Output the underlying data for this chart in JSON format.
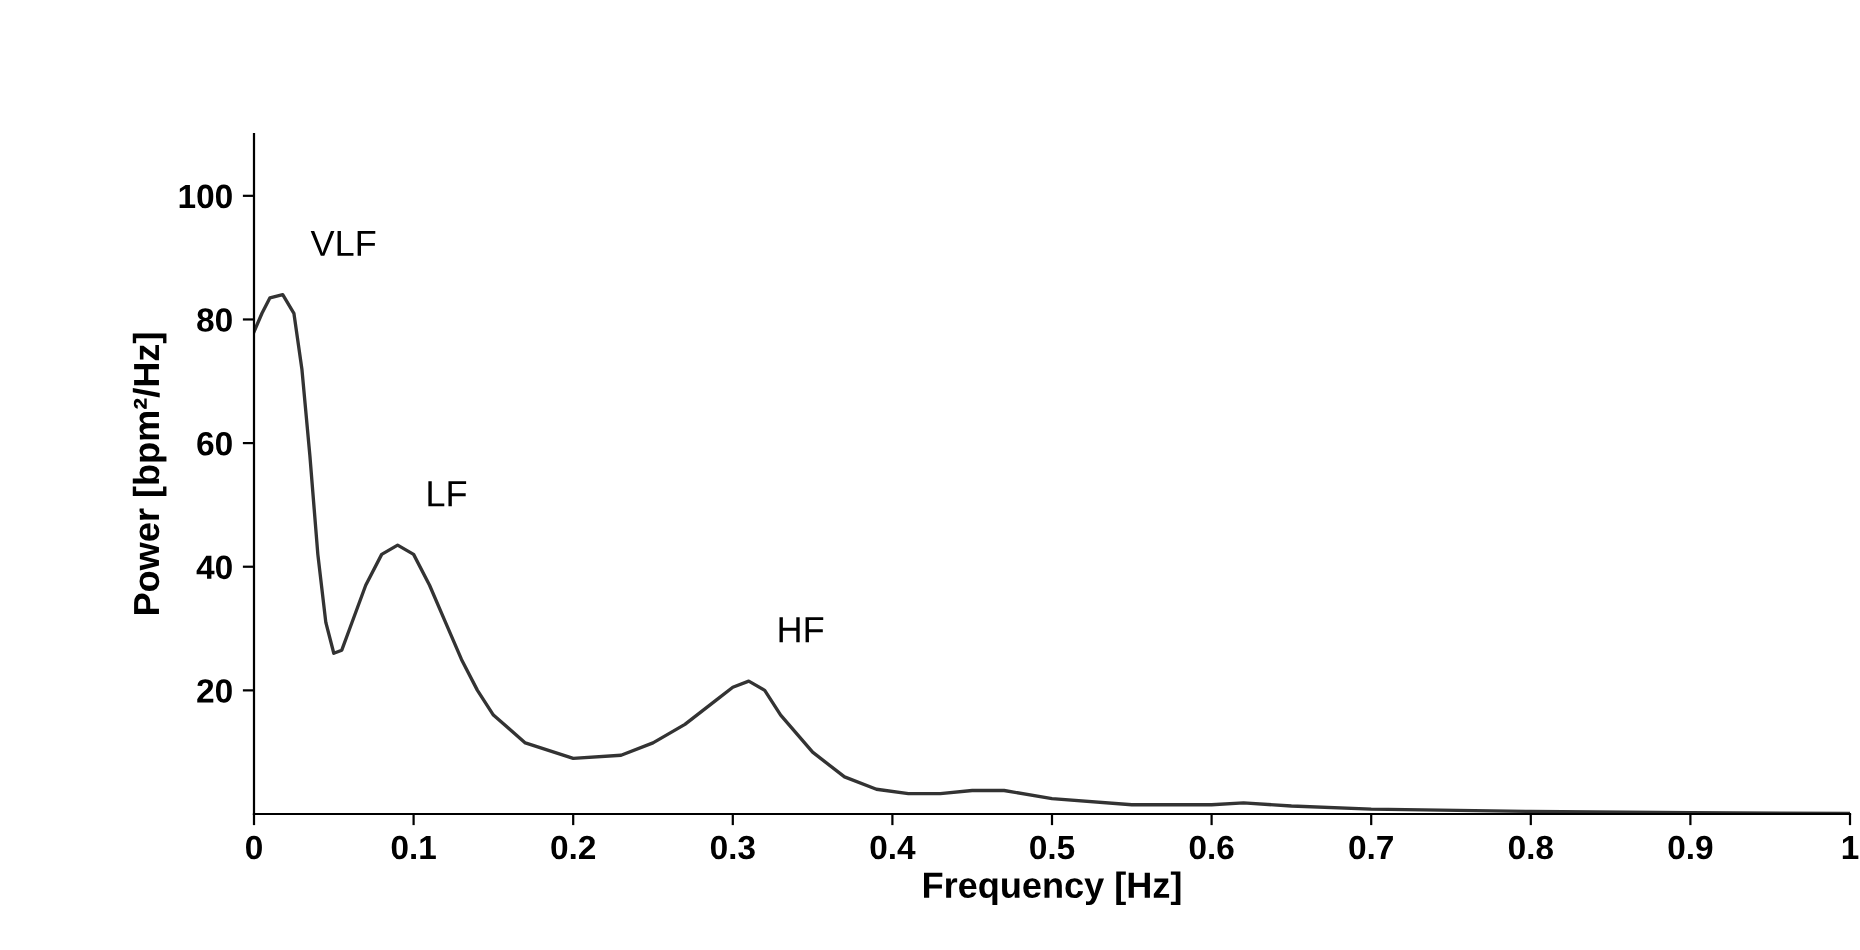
{
  "chart_data": {
    "type": "line",
    "xlabel": "Frequency [Hz]",
    "ylabel": "Power [bpm²/Hz]",
    "x": [
      0,
      0.005,
      0.01,
      0.018,
      0.025,
      0.03,
      0.035,
      0.04,
      0.045,
      0.05,
      0.055,
      0.06,
      0.07,
      0.08,
      0.09,
      0.1,
      0.11,
      0.12,
      0.13,
      0.14,
      0.15,
      0.17,
      0.2,
      0.23,
      0.25,
      0.27,
      0.29,
      0.3,
      0.31,
      0.32,
      0.33,
      0.35,
      0.37,
      0.39,
      0.41,
      0.43,
      0.45,
      0.47,
      0.5,
      0.55,
      0.6,
      0.62,
      0.65,
      0.7,
      0.8,
      0.9,
      1.0
    ],
    "series": [
      {
        "color": "#333333",
        "values": [
          78,
          81,
          83.5,
          84,
          81,
          72,
          58,
          42,
          31,
          26,
          26.5,
          30,
          37,
          42,
          43.5,
          42,
          37,
          31,
          25,
          20,
          16,
          11.5,
          9,
          9.5,
          11.5,
          14.5,
          18.5,
          20.5,
          21.5,
          20,
          16,
          10,
          6,
          4,
          3.3,
          3.3,
          3.8,
          3.8,
          2.5,
          1.5,
          1.5,
          1.8,
          1.3,
          0.8,
          0.4,
          0.2,
          0.1
        ]
      }
    ],
    "xlim": [
      0,
      1
    ],
    "ylim": [
      0,
      110
    ],
    "xticks": [
      0,
      0.1,
      0.2,
      0.3,
      0.4,
      0.5,
      0.6,
      0.7,
      0.8,
      0.9,
      1
    ],
    "yticks": [
      20,
      40,
      60,
      80,
      100
    ],
    "annotations": [
      {
        "text": "VLF",
        "x": 0.018,
        "y": 84
      },
      {
        "text": "LF",
        "x": 0.09,
        "y": 43.5
      },
      {
        "text": "HF",
        "x": 0.31,
        "y": 21.5
      }
    ],
    "grid": false,
    "legend": false,
    "marker": "none",
    "line_style": "solid"
  }
}
